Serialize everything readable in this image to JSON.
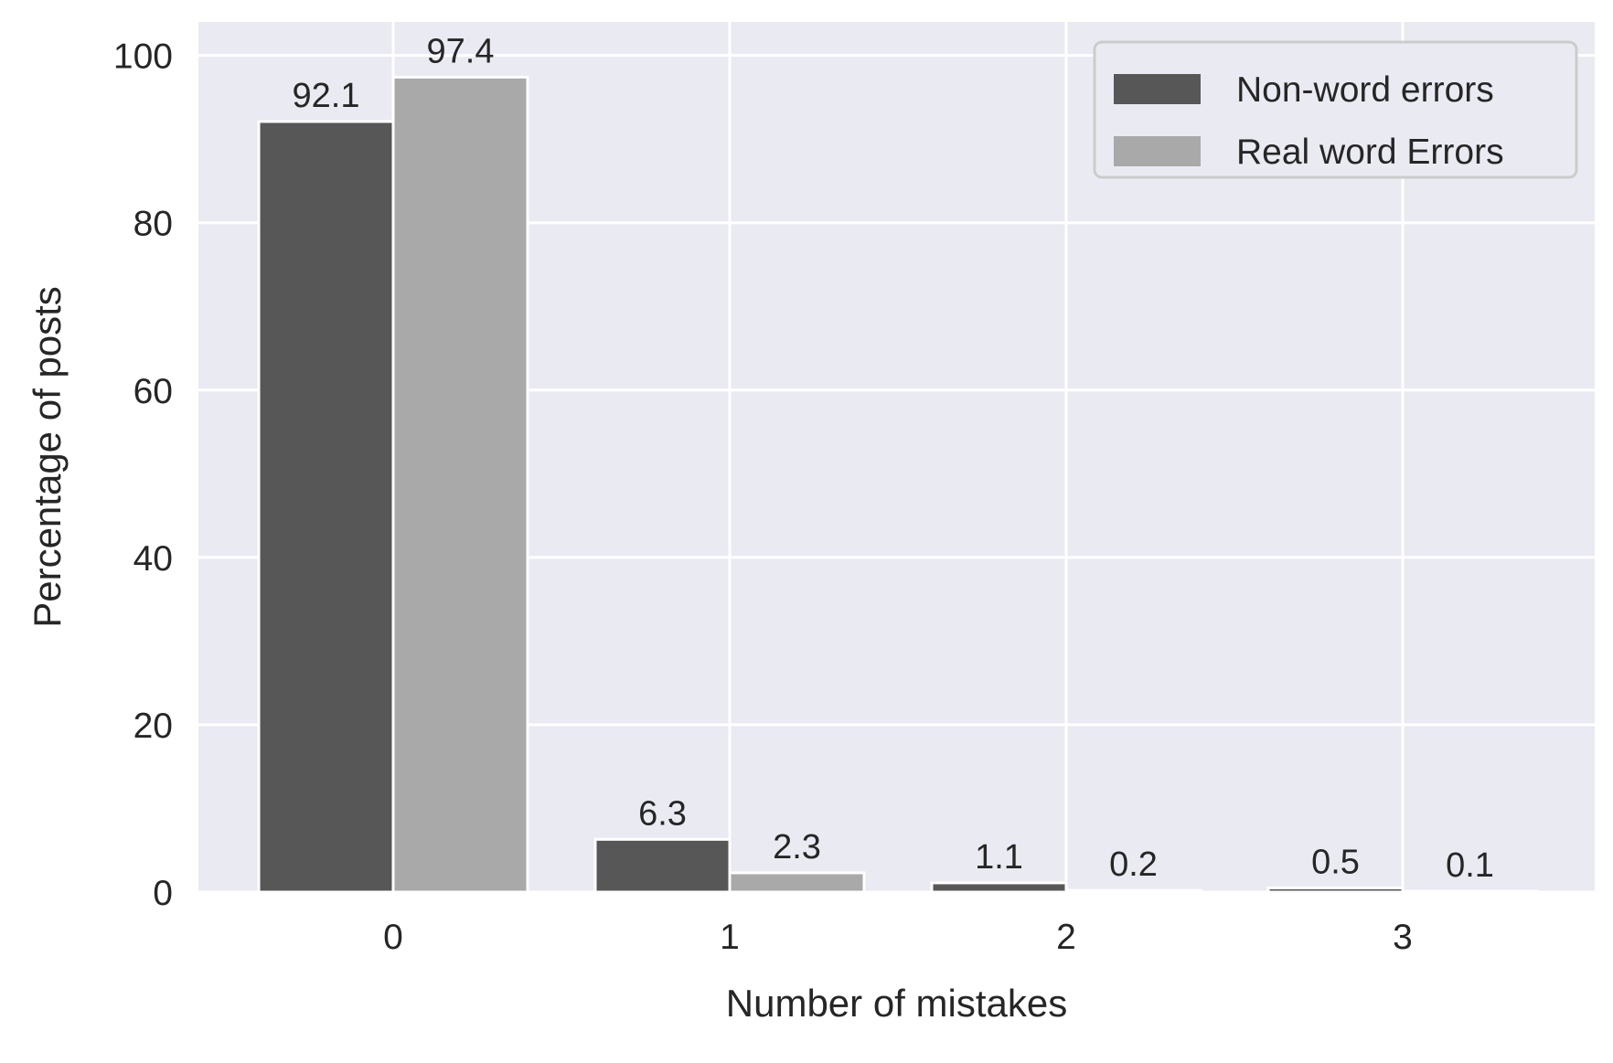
{
  "chart_data": {
    "type": "bar",
    "title": "",
    "xlabel": "Number of mistakes",
    "ylabel": "Percentage of posts",
    "categories": [
      "0",
      "1",
      "2",
      "3"
    ],
    "series": [
      {
        "name": "Non-word errors",
        "values": [
          92.1,
          6.3,
          1.1,
          0.5
        ],
        "color": "#575757"
      },
      {
        "name": "Real word Errors",
        "values": [
          97.4,
          2.3,
          0.2,
          0.1
        ],
        "color": "#a9a9a9"
      }
    ],
    "data_labels": [
      [
        "92.1",
        "6.3",
        "1.1",
        "0.5"
      ],
      [
        "97.4",
        "2.3",
        "0.2",
        "0.1"
      ]
    ],
    "ylim": [
      0,
      104
    ],
    "yticks": [
      0,
      20,
      40,
      60,
      80,
      100
    ],
    "ytick_labels": [
      "0",
      "20",
      "40",
      "60",
      "80",
      "100"
    ],
    "grid": true,
    "legend_position": "top-right",
    "background_color": "#eaeaf2",
    "grid_color": "#ffffff"
  }
}
